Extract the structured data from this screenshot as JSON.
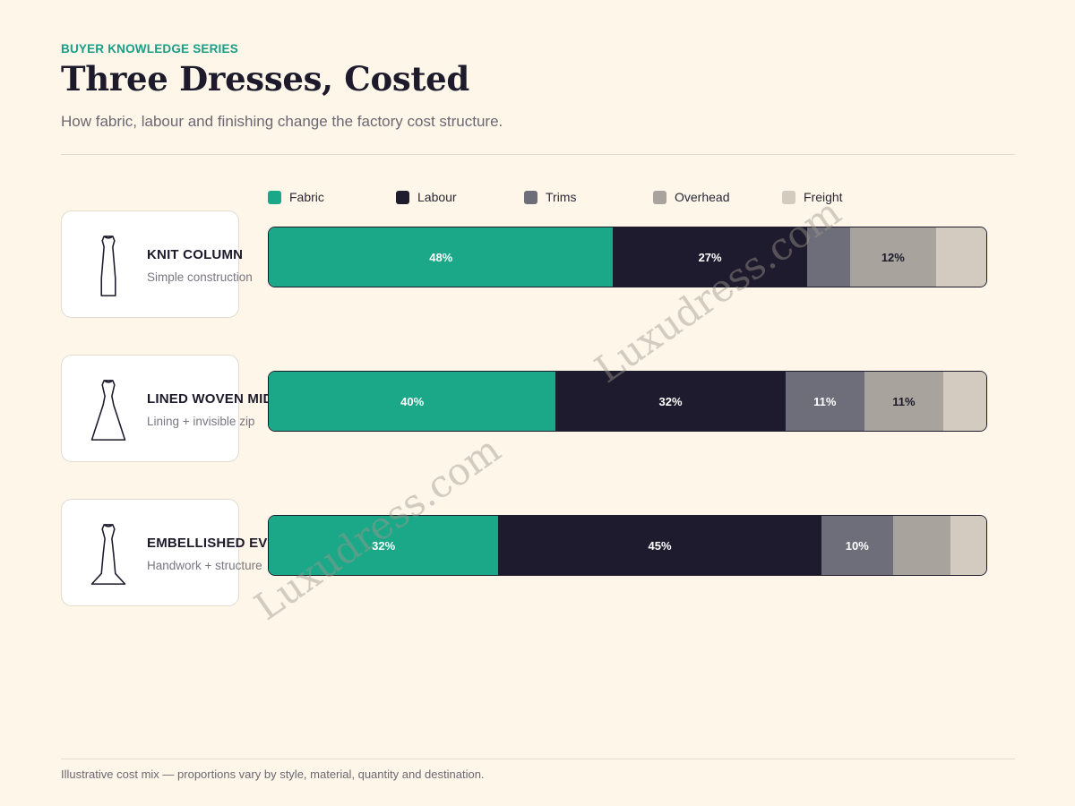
{
  "header": {
    "kicker": "BUYER KNOWLEDGE SERIES",
    "title": "Three Dresses, Costed",
    "subtitle": "How fabric, labour and finishing change the factory cost structure."
  },
  "colors": {
    "background": "#fdf6e9",
    "accent": "#1a9e86"
  },
  "legend": [
    {
      "label": "Fabric",
      "color": "#1ba888"
    },
    {
      "label": "Labour",
      "color": "#1d1b2d"
    },
    {
      "label": "Trims",
      "color": "#6e6d7a"
    },
    {
      "label": "Overhead",
      "color": "#a9a39e"
    },
    {
      "label": "Freight",
      "color": "#d3cac0"
    }
  ],
  "dresses": [
    {
      "name": "KNIT COLUMN",
      "description": "Simple construction",
      "icon": "column-dress-icon"
    },
    {
      "name": "LINED WOVEN MIDI",
      "description": "Lining + invisible zip",
      "icon": "a-line-dress-icon"
    },
    {
      "name": "EMBELLISHED EVENING",
      "description": "Handwork + structure",
      "icon": "gown-dress-icon"
    }
  ],
  "chart_data": {
    "type": "bar",
    "orientation": "horizontal",
    "stacked": true,
    "normalized": true,
    "categories": [
      "KNIT COLUMN",
      "LINED WOVEN MIDI",
      "EMBELLISHED EVENING"
    ],
    "series": [
      {
        "name": "Fabric",
        "values": [
          48,
          40,
          32
        ],
        "labels": [
          "48%",
          "40%",
          "32%"
        ]
      },
      {
        "name": "Labour",
        "values": [
          27,
          32,
          45
        ],
        "labels": [
          "27%",
          "32%",
          "45%"
        ]
      },
      {
        "name": "Trims",
        "values": [
          6,
          11,
          10
        ],
        "labels": [
          "",
          "11%",
          "10%"
        ]
      },
      {
        "name": "Overhead",
        "values": [
          12,
          11,
          8
        ],
        "labels": [
          "12%",
          "11%",
          ""
        ]
      },
      {
        "name": "Freight",
        "values": [
          7,
          6,
          5
        ],
        "labels": [
          "",
          "",
          ""
        ]
      }
    ],
    "legend_position": "top-left",
    "grid": false
  },
  "watermark": "Luxudress.com",
  "footnote": "Illustrative cost mix — proportions vary by style, material, quantity and destination."
}
